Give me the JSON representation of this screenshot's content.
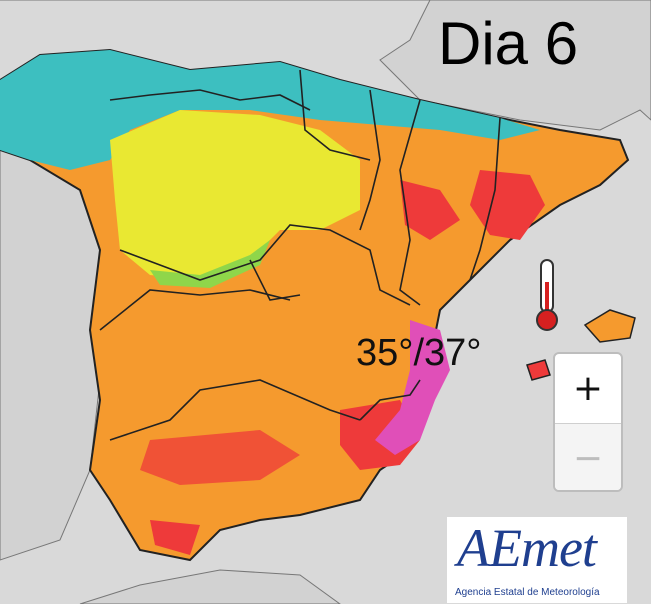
{
  "map": {
    "title": "Dia 6",
    "temperature_label": "35°/37°",
    "colors": {
      "sea": "#d9d9d9",
      "land_outside": "#d2d2d2",
      "cool_teal": "#3dbfc0",
      "cool_green": "#8fd64a",
      "warm_yellow": "#e9e832",
      "hot_orange": "#f59a2e",
      "very_hot_red": "#ee3a3a",
      "extreme_magenta": "#e04fb8",
      "border": "#222222"
    },
    "icons": {
      "thermometer": "thermometer-icon"
    }
  },
  "zoom": {
    "in_label": "+",
    "out_label": "−"
  },
  "logo": {
    "name": "AEmet",
    "subtitle": "Agencia Estatal de Meteorología"
  }
}
